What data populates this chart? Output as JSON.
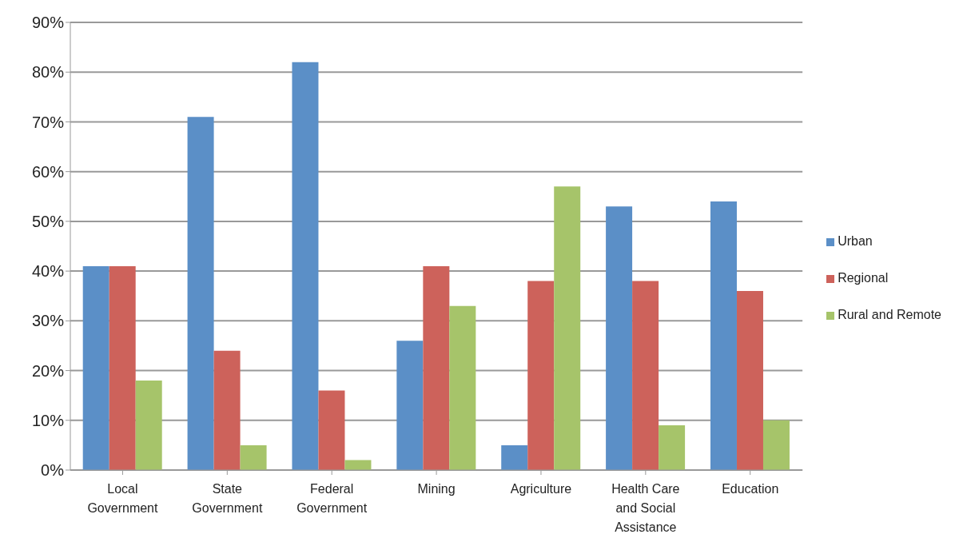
{
  "chart_data": {
    "type": "bar",
    "categories": [
      "Local Government",
      "State Government",
      "Federal Government",
      "Mining",
      "Agriculture",
      "Health Care and Social Assistance",
      "Education"
    ],
    "series": [
      {
        "name": "Urban",
        "color": "#5b8fc7",
        "values": [
          41,
          71,
          82,
          26,
          5,
          53,
          54
        ]
      },
      {
        "name": "Regional",
        "color": "#cd625b",
        "values": [
          41,
          24,
          16,
          41,
          38,
          38,
          36
        ]
      },
      {
        "name": "Rural and Remote",
        "color": "#a6c46a",
        "values": [
          18,
          5,
          2,
          33,
          57,
          9,
          10
        ]
      }
    ],
    "ylim": [
      0,
      90
    ],
    "yticks": [
      {
        "value": 0,
        "label": "0%"
      },
      {
        "value": 10,
        "label": "10%"
      },
      {
        "value": 20,
        "label": "20%"
      },
      {
        "value": 30,
        "label": "30%"
      },
      {
        "value": 40,
        "label": "40%"
      },
      {
        "value": 50,
        "label": "50%"
      },
      {
        "value": 60,
        "label": "60%"
      },
      {
        "value": 70,
        "label": "70%"
      },
      {
        "value": 80,
        "label": "80%"
      },
      {
        "value": 90,
        "label": "90%"
      }
    ],
    "grid": "y",
    "legend": "right"
  }
}
